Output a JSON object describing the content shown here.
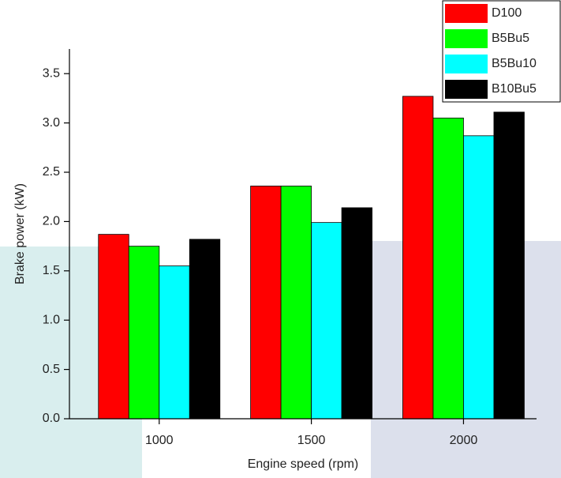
{
  "chart_data": {
    "type": "bar",
    "x_label": "Engine speed (rpm)",
    "y_label": "Brake power (kW)",
    "x": [
      1000,
      1500,
      2000
    ],
    "xlim": [
      705,
      2240
    ],
    "xticks": [
      1000,
      1500,
      2000
    ],
    "ylim": [
      0,
      3.75
    ],
    "yticks": [
      {
        "value": 0,
        "label": "0.0"
      },
      0.5,
      {
        "value": 1,
        "label": "1.0"
      },
      1.5,
      {
        "value": 2,
        "label": "2.0"
      },
      2.5,
      {
        "value": 3,
        "label": "3.0"
      },
      3.5
    ],
    "legend": "top-right",
    "series": [
      {
        "name": "D100",
        "color": "#ff0000",
        "values": [
          1.87,
          2.36,
          3.27
        ]
      },
      {
        "name": "B5Bu5",
        "color": "#00ff00",
        "values": [
          1.75,
          2.36,
          3.05
        ]
      },
      {
        "name": "B5Bu10",
        "color": "#00ffff",
        "values": [
          1.55,
          1.99,
          2.87
        ]
      },
      {
        "name": "B10Bu5",
        "color": "#000000",
        "values": [
          1.82,
          2.14,
          3.11
        ]
      }
    ]
  }
}
